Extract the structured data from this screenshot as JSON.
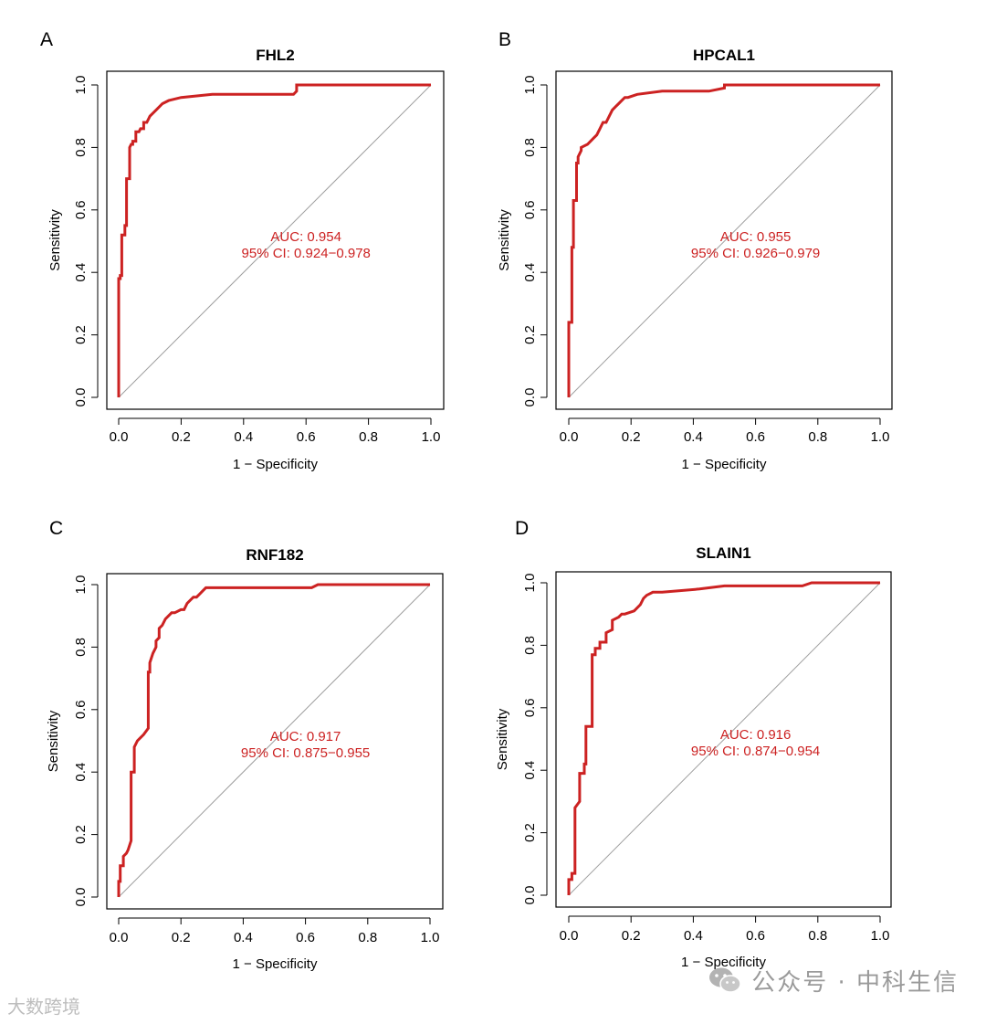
{
  "chart_data": [
    {
      "type": "line",
      "panel_label": "A",
      "title": "FHL2",
      "xlabel": "1 − Specificity",
      "ylabel": "Sensitivity",
      "xlim": [
        0,
        1
      ],
      "ylim": [
        0,
        1
      ],
      "ticks": [
        "0.0",
        "0.2",
        "0.4",
        "0.6",
        "0.8",
        "1.0"
      ],
      "reference_line": "diagonal",
      "auc_label": "AUC: 0.954",
      "ci_label": "95% CI: 0.924−0.978",
      "annotation_position": [
        0.6,
        0.5
      ],
      "series": [
        {
          "name": "ROC",
          "color": "#cc2222",
          "x": [
            0,
            0,
            0.005,
            0.005,
            0.01,
            0.01,
            0.02,
            0.02,
            0.025,
            0.025,
            0.035,
            0.035,
            0.04,
            0.045,
            0.045,
            0.055,
            0.055,
            0.065,
            0.07,
            0.08,
            0.08,
            0.09,
            0.1,
            0.11,
            0.12,
            0.14,
            0.16,
            0.2,
            0.3,
            0.56,
            0.57,
            0.57,
            1.0
          ],
          "y": [
            0,
            0.38,
            0.38,
            0.39,
            0.39,
            0.52,
            0.52,
            0.55,
            0.55,
            0.7,
            0.7,
            0.8,
            0.81,
            0.81,
            0.82,
            0.82,
            0.85,
            0.85,
            0.86,
            0.86,
            0.88,
            0.88,
            0.9,
            0.91,
            0.92,
            0.94,
            0.95,
            0.96,
            0.97,
            0.97,
            0.98,
            1.0,
            1.0
          ]
        }
      ]
    },
    {
      "type": "line",
      "panel_label": "B",
      "title": "HPCAL1",
      "xlabel": "1 − Specificity",
      "ylabel": "Sensitivity",
      "xlim": [
        0,
        1
      ],
      "ylim": [
        0,
        1
      ],
      "ticks": [
        "0.0",
        "0.2",
        "0.4",
        "0.6",
        "0.8",
        "1.0"
      ],
      "reference_line": "diagonal",
      "auc_label": "AUC: 0.955",
      "ci_label": "95% CI: 0.926−0.979",
      "annotation_position": [
        0.6,
        0.5
      ],
      "series": [
        {
          "name": "ROC",
          "color": "#cc2222",
          "x": [
            0,
            0,
            0.01,
            0.01,
            0.015,
            0.015,
            0.025,
            0.025,
            0.03,
            0.03,
            0.04,
            0.04,
            0.06,
            0.07,
            0.08,
            0.09,
            0.1,
            0.11,
            0.12,
            0.13,
            0.14,
            0.15,
            0.16,
            0.17,
            0.18,
            0.19,
            0.22,
            0.3,
            0.45,
            0.5,
            0.5,
            1.0
          ],
          "y": [
            0,
            0.24,
            0.24,
            0.48,
            0.48,
            0.63,
            0.63,
            0.75,
            0.75,
            0.77,
            0.79,
            0.8,
            0.81,
            0.82,
            0.83,
            0.84,
            0.86,
            0.88,
            0.88,
            0.9,
            0.92,
            0.93,
            0.94,
            0.95,
            0.96,
            0.96,
            0.97,
            0.98,
            0.98,
            0.99,
            1.0,
            1.0
          ]
        }
      ]
    },
    {
      "type": "line",
      "panel_label": "C",
      "title": "RNF182",
      "xlabel": "1 − Specificity",
      "ylabel": "Sensitivity",
      "xlim": [
        0,
        1
      ],
      "ylim": [
        0,
        1
      ],
      "ticks": [
        "0.0",
        "0.2",
        "0.4",
        "0.6",
        "0.8",
        "1.0"
      ],
      "reference_line": "diagonal",
      "auc_label": "AUC: 0.917",
      "ci_label": "95% CI: 0.875−0.955",
      "annotation_position": [
        0.6,
        0.5
      ],
      "series": [
        {
          "name": "ROC",
          "color": "#cc2222",
          "x": [
            0,
            0,
            0.005,
            0.005,
            0.015,
            0.015,
            0.025,
            0.03,
            0.04,
            0.04,
            0.05,
            0.05,
            0.06,
            0.07,
            0.08,
            0.095,
            0.095,
            0.1,
            0.1,
            0.11,
            0.12,
            0.12,
            0.13,
            0.13,
            0.14,
            0.15,
            0.16,
            0.17,
            0.18,
            0.2,
            0.21,
            0.22,
            0.24,
            0.25,
            0.26,
            0.27,
            0.28,
            0.62,
            0.64,
            1.0
          ],
          "y": [
            0,
            0.05,
            0.05,
            0.1,
            0.1,
            0.13,
            0.14,
            0.15,
            0.18,
            0.4,
            0.4,
            0.48,
            0.5,
            0.51,
            0.52,
            0.54,
            0.72,
            0.72,
            0.75,
            0.78,
            0.8,
            0.82,
            0.83,
            0.86,
            0.87,
            0.89,
            0.9,
            0.91,
            0.91,
            0.92,
            0.92,
            0.94,
            0.96,
            0.96,
            0.97,
            0.98,
            0.99,
            0.99,
            1.0,
            1.0
          ]
        }
      ]
    },
    {
      "type": "line",
      "panel_label": "D",
      "title": "SLAIN1",
      "xlabel": "1 − Specificity",
      "ylabel": "Sensitivity",
      "xlim": [
        0,
        1
      ],
      "ylim": [
        0,
        1
      ],
      "ticks": [
        "0.0",
        "0.2",
        "0.4",
        "0.6",
        "0.8",
        "1.0"
      ],
      "reference_line": "diagonal",
      "auc_label": "AUC: 0.916",
      "ci_label": "95% CI: 0.874−0.954",
      "annotation_position": [
        0.6,
        0.5
      ],
      "series": [
        {
          "name": "ROC",
          "color": "#cc2222",
          "x": [
            0,
            0,
            0.01,
            0.01,
            0.02,
            0.02,
            0.035,
            0.035,
            0.05,
            0.05,
            0.055,
            0.055,
            0.075,
            0.075,
            0.085,
            0.085,
            0.1,
            0.1,
            0.12,
            0.12,
            0.14,
            0.14,
            0.16,
            0.17,
            0.18,
            0.21,
            0.23,
            0.24,
            0.25,
            0.27,
            0.3,
            0.42,
            0.5,
            0.75,
            0.78,
            1.0
          ],
          "y": [
            0,
            0.05,
            0.05,
            0.07,
            0.07,
            0.28,
            0.3,
            0.39,
            0.39,
            0.42,
            0.42,
            0.54,
            0.54,
            0.77,
            0.77,
            0.79,
            0.79,
            0.81,
            0.81,
            0.84,
            0.85,
            0.88,
            0.89,
            0.9,
            0.9,
            0.91,
            0.93,
            0.95,
            0.96,
            0.97,
            0.97,
            0.98,
            0.99,
            0.99,
            1.0,
            1.0
          ]
        }
      ]
    }
  ],
  "watermark": {
    "wechat_text": "公众号 · 中科生信",
    "left_text": "大数跨境"
  }
}
